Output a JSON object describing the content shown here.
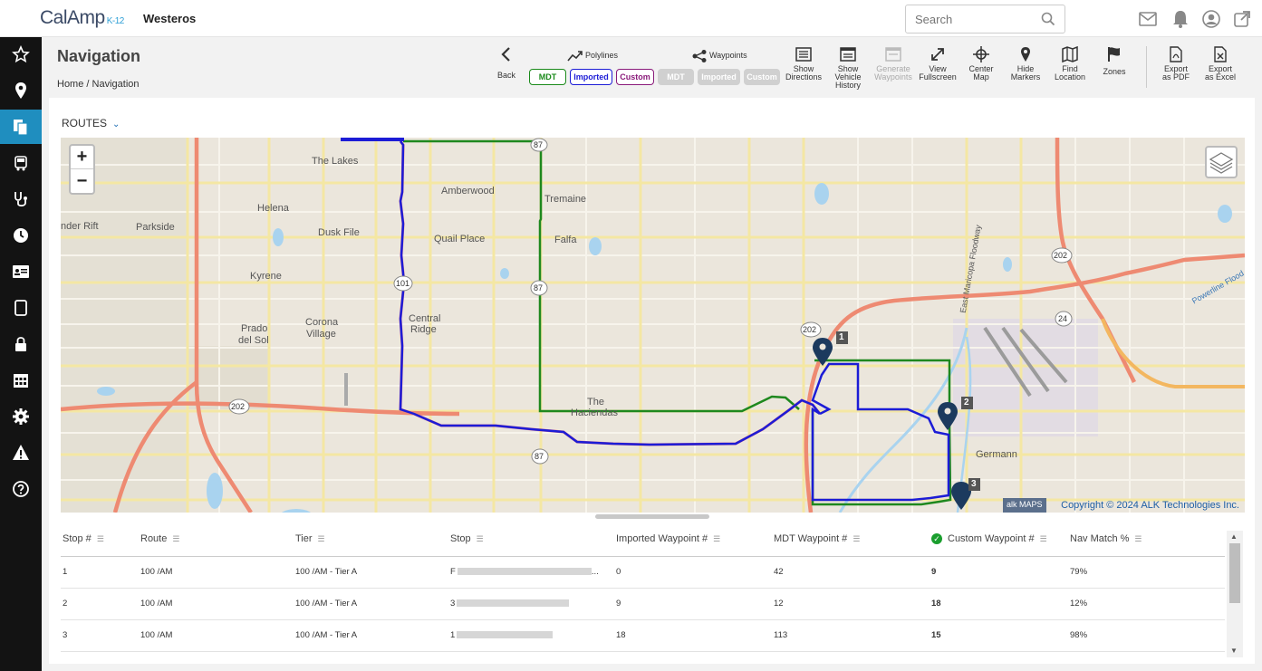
{
  "app": {
    "logo": "CalAmp",
    "logo_sub": "K-12",
    "district": "Westeros"
  },
  "search": {
    "placeholder": "Search"
  },
  "sidebar": {
    "items": [
      {
        "name": "favorites",
        "icon": "star-icon"
      },
      {
        "name": "location",
        "icon": "map-pin-icon"
      },
      {
        "name": "navigation",
        "icon": "documents-icon",
        "active": true
      },
      {
        "name": "vehicles",
        "icon": "bus-icon"
      },
      {
        "name": "diagnostics",
        "icon": "stethoscope-icon"
      },
      {
        "name": "history",
        "icon": "clock-icon"
      },
      {
        "name": "id-cards",
        "icon": "id-card-icon"
      },
      {
        "name": "tablet",
        "icon": "tablet-icon"
      },
      {
        "name": "security",
        "icon": "lock-icon"
      },
      {
        "name": "calendar",
        "icon": "calendar-icon"
      },
      {
        "name": "settings",
        "icon": "gear-icon"
      },
      {
        "name": "alerts",
        "icon": "warning-icon"
      },
      {
        "name": "help",
        "icon": "help-icon"
      }
    ]
  },
  "page": {
    "title": "Navigation",
    "crumb_home": "Home",
    "crumb_sep": "/",
    "crumb_current": "Navigation"
  },
  "toolbar": {
    "back": "Back",
    "polylines_label": "Polylines",
    "waypoints_label": "Waypoints",
    "poly_mdt": "MDT",
    "poly_imported": "Imported",
    "poly_custom": "Custom",
    "wp_mdt": "MDT",
    "wp_imported": "Imported",
    "wp_custom": "Custom",
    "show_directions_1": "Show",
    "show_directions_2": "Directions",
    "show_history_1": "Show",
    "show_history_2": "Vehicle",
    "show_history_3": "History",
    "generate_1": "Generate",
    "generate_2": "Waypoints",
    "fullscreen_1": "View",
    "fullscreen_2": "Fullscreen",
    "center_1": "Center",
    "center_2": "Map",
    "hide_1": "Hide",
    "hide_2": "Markers",
    "find_1": "Find",
    "find_2": "Location",
    "zones": "Zones",
    "pdf_1": "Export",
    "pdf_2": "as PDF",
    "excel_1": "Export",
    "excel_2": "as Excel"
  },
  "routes_label": "ROUTES",
  "map": {
    "copyright": "Copyright © 2024 ALK Technologies Inc.",
    "alk": "alk  MAPS",
    "zoom_in": "+",
    "zoom_out": "−",
    "labels": {
      "the_lakes": "The Lakes",
      "amberwood": "Amberwood",
      "tremaine": "Tremaine",
      "under_rift": "nder Rift",
      "parkside": "Parkside",
      "helena": "Helena",
      "dusk_file": "Dusk File",
      "quail_place": "Quail Place",
      "falfa": "Falfa",
      "kyrene": "Kyrene",
      "central_ridge_1": "Central",
      "central_ridge_2": "Ridge",
      "corona_1": "Corona",
      "corona_2": "Village",
      "prado_1": "Prado",
      "prado_2": "del Sol",
      "hacienda_1": "The",
      "hacienda_2": "Haciendas",
      "germann": "Germann",
      "floodway": "East Maricopa Floodway",
      "powerline": "Powerline Flood",
      "shield_202a": "202",
      "shield_202b": "202",
      "shield_202c": "202",
      "shield_101": "101",
      "shield_87a": "87",
      "shield_87b": "87",
      "shield_87c": "87",
      "shield_24": "24",
      "marker_1": "1",
      "marker_2": "2",
      "marker_3": "3"
    }
  },
  "table": {
    "headers": [
      "Stop #",
      "Route",
      "Tier",
      "Stop",
      "Imported Waypoint #",
      "MDT Waypoint #",
      "Custom Waypoint #",
      "Nav Match %"
    ],
    "rows": [
      {
        "stop": "1",
        "route": "100 /AM",
        "tier": "100 /AM - Tier A",
        "stop_name": "F",
        "stop_suffix": "...",
        "imported": "0",
        "mdt": "42",
        "custom": "9",
        "match": "79%"
      },
      {
        "stop": "2",
        "route": "100 /AM",
        "tier": "100 /AM - Tier A",
        "stop_name": "3",
        "stop_suffix": "",
        "imported": "9",
        "mdt": "12",
        "custom": "18",
        "match": "12%"
      },
      {
        "stop": "3",
        "route": "100 /AM",
        "tier": "100 /AM - Tier A",
        "stop_name": "1",
        "stop_suffix": "",
        "imported": "18",
        "mdt": "113",
        "custom": "15",
        "match": "98%"
      }
    ]
  },
  "colors": {
    "accent": "#1f8ebf",
    "mdt": "#1a8a1a",
    "imported": "#1c1cd6",
    "custom": "#8a1a7a"
  }
}
